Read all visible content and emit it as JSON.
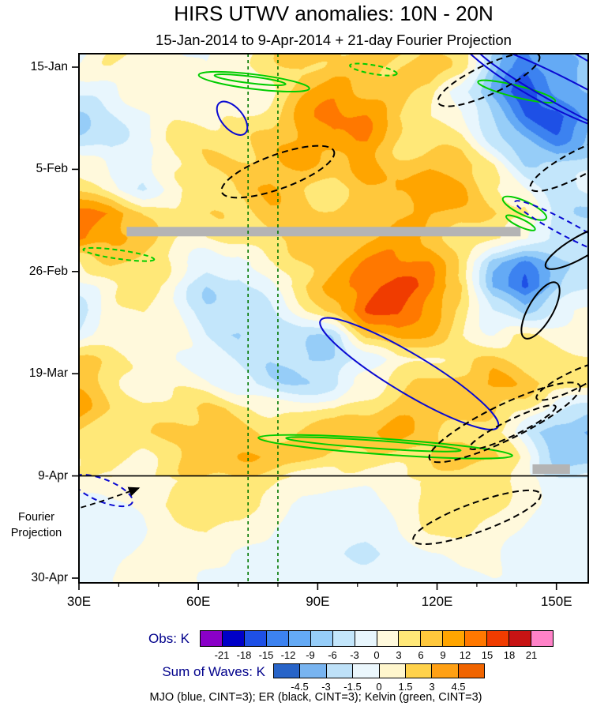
{
  "title": "HIRS UTWV anomalies: 10N - 20N",
  "subtitle": "15-Jan-2014 to 9-Apr-2014 + 21-day Fourier Projection",
  "axes": {
    "y_ticks": [
      "15-Jan",
      "5-Feb",
      "26-Feb",
      "19-Mar",
      "9-Apr",
      "30-Apr"
    ],
    "x_ticks": [
      "30E",
      "60E",
      "90E",
      "120E",
      "150E"
    ],
    "fourier_label_line1": "Fourier",
    "fourier_label_line2": "Projection"
  },
  "caption": "MJO (blue, CINT=3); ER (black, CINT=3); Kelvin (green, CINT=3)",
  "colorbars": {
    "label_color": "#00008B",
    "obs": {
      "label": "Obs: K",
      "ticks": [
        "-21",
        "-18",
        "-15",
        "-12",
        "-9",
        "-6",
        "-3",
        "0",
        "3",
        "6",
        "9",
        "12",
        "15",
        "18",
        "21"
      ],
      "colors": [
        "#8A00C8",
        "#0000C8",
        "#1E50E6",
        "#3C82F0",
        "#64AAF5",
        "#96CDF8",
        "#C3E6FB",
        "#E8F6FD",
        "#FFF9DC",
        "#FFE878",
        "#FFC83C",
        "#FFA500",
        "#FF7800",
        "#F03C00",
        "#C81414",
        "#FF82C8"
      ]
    },
    "waves": {
      "label": "Sum of Waves: K",
      "ticks": [
        "-4.5",
        "-3",
        "-1.5",
        "0",
        "1.5",
        "3",
        "4.5"
      ],
      "colors": [
        "#2864C8",
        "#78B4F0",
        "#BEE1F8",
        "#EBF7FD",
        "#FFF6CD",
        "#FFD24B",
        "#FFA014",
        "#F06400"
      ]
    }
  },
  "wave_colors": {
    "mjo": "#0A0AD2",
    "er": "#000000",
    "kelvin": "#00CC00",
    "reference_green": "#007800",
    "missing_gray": "#B4B4B4"
  },
  "chart_data": {
    "type": "heatmap",
    "title": "HIRS UTWV anomalies: 10N - 20N",
    "x_unit": "degrees east longitude",
    "y_unit": "days since 15-Jan-2014 (time increases downward)",
    "x_range": [
      30,
      158
    ],
    "y_range_days": [
      0,
      105
    ],
    "x_tick_lons": [
      30,
      60,
      90,
      120,
      150
    ],
    "y_tick_days": [
      0,
      21,
      42,
      63,
      84,
      105
    ],
    "projection_start_day": 84,
    "contour_interval_K": 3,
    "x": [
      30,
      38,
      46,
      54,
      62,
      70,
      78,
      86,
      94,
      102,
      110,
      118,
      126,
      134,
      142,
      150,
      158
    ],
    "y": [
      0,
      5,
      10,
      15,
      20,
      25,
      30,
      35,
      40,
      45,
      50,
      55,
      60,
      65,
      70,
      75,
      80,
      85,
      90,
      95,
      100,
      105
    ],
    "values": [
      [
        -2,
        1,
        2,
        2,
        -2,
        2,
        5,
        7,
        8,
        7,
        8,
        9,
        4,
        -8,
        -14,
        -10,
        -6
      ],
      [
        -4,
        -1,
        2,
        3,
        1,
        3,
        4,
        8,
        10,
        8,
        7,
        6,
        -2,
        -12,
        -18,
        -12,
        -8
      ],
      [
        -5,
        -3,
        0,
        3,
        3,
        2,
        5,
        9,
        11,
        10,
        6,
        4,
        0,
        -8,
        -14,
        -16,
        -10
      ],
      [
        -4,
        -4,
        1,
        4,
        3,
        4,
        6,
        9,
        12,
        12,
        8,
        5,
        3,
        -4,
        -8,
        -12,
        -8
      ],
      [
        2,
        -2,
        -2,
        2,
        5,
        6,
        8,
        9,
        8,
        10,
        9,
        9,
        6,
        2,
        -5,
        -6,
        -4
      ],
      [
        6,
        2,
        -2,
        1,
        4,
        7,
        9,
        7,
        5,
        8,
        10,
        8,
        8,
        4,
        0,
        -4,
        -2
      ],
      [
        13,
        12,
        6,
        4,
        5,
        6,
        7,
        6,
        6,
        8,
        9,
        8,
        7,
        8,
        6,
        -4,
        -6
      ],
      [
        14,
        10,
        5,
        3,
        4,
        5,
        6,
        5,
        7,
        9,
        10,
        9,
        6,
        4,
        2,
        -6,
        -4
      ],
      [
        4,
        5,
        4,
        2,
        -2,
        -3,
        2,
        5,
        9,
        12,
        13,
        12,
        6,
        -8,
        -12,
        -8,
        -6
      ],
      [
        -2,
        2,
        3,
        0,
        -4,
        -4,
        1,
        6,
        10,
        14,
        15,
        13,
        8,
        -10,
        -16,
        -9,
        -5
      ],
      [
        -3,
        1,
        4,
        2,
        -3,
        -6,
        -4,
        2,
        8,
        13,
        14,
        10,
        5,
        -4,
        -8,
        -2,
        2
      ],
      [
        -2,
        2,
        3,
        1,
        -4,
        -8,
        -8,
        -4,
        -5,
        6,
        10,
        8,
        4,
        2,
        4,
        4,
        2
      ],
      [
        5,
        4,
        1,
        0,
        -3,
        -5,
        -6,
        -5,
        -6,
        -2,
        3,
        4,
        6,
        8,
        6,
        5,
        4
      ],
      [
        7,
        5,
        2,
        1,
        0,
        -3,
        -4,
        -3,
        -4,
        1,
        4,
        6,
        9,
        10,
        7,
        6,
        3
      ],
      [
        8,
        6,
        4,
        5,
        6,
        5,
        4,
        3,
        2,
        5,
        8,
        9,
        8,
        6,
        4,
        -2,
        -4
      ],
      [
        6,
        5,
        5,
        7,
        8,
        8,
        7,
        6,
        6,
        7,
        9,
        8,
        6,
        3,
        -2,
        -8,
        -10
      ],
      [
        5,
        6,
        3,
        4,
        7,
        8,
        8,
        7,
        5,
        4,
        5,
        6,
        8,
        6,
        2,
        -6,
        -8
      ],
      [
        2,
        3,
        1,
        2,
        4,
        5,
        4,
        2,
        1,
        1,
        2,
        3,
        4,
        4,
        2,
        -2,
        -3
      ],
      [
        -2,
        -1,
        1,
        4,
        6,
        5,
        2,
        -1,
        -2,
        -2,
        1,
        4,
        5,
        4,
        1,
        -1,
        -2
      ],
      [
        -3,
        -2,
        0,
        2,
        3,
        2,
        0,
        -2,
        -3,
        -2,
        0,
        3,
        4,
        2,
        0,
        -2,
        -3
      ],
      [
        -2,
        -1,
        0,
        1,
        1,
        0,
        -1,
        -2,
        -3,
        -3,
        -2,
        0,
        1,
        1,
        -1,
        -2,
        -2
      ],
      [
        -1,
        0,
        1,
        1,
        0,
        -1,
        -2,
        -2,
        -2,
        -2,
        -2,
        -1,
        0,
        0,
        -1,
        -2,
        -1
      ]
    ],
    "overlays": {
      "reference_lons": [
        72.5,
        80
      ],
      "missing_data_bars": [
        {
          "lon0": 42,
          "lon1": 141,
          "day": 33.8
        },
        {
          "lon0": 144,
          "lon1": 153.4,
          "day": 82.6
        }
      ],
      "arrow": {
        "from_lon": 30.5,
        "from_day": 90.5,
        "to_lon": 45,
        "to_day": 86.5
      },
      "wave_contours": [
        {
          "wave": "kelvin",
          "lon": 74,
          "day": 3,
          "rx_deg": 14,
          "ry_day": 1.5,
          "rot": 7,
          "dashed": false
        },
        {
          "wave": "kelvin",
          "lon": 73,
          "day": 2.6,
          "rx_deg": 9,
          "ry_day": 0.7,
          "rot": 7,
          "dashed": false
        },
        {
          "wave": "kelvin",
          "lon": 104,
          "day": 0.5,
          "rx_deg": 6,
          "ry_day": 0.9,
          "rot": 10,
          "dashed": true
        },
        {
          "wave": "kelvin",
          "lon": 140,
          "day": 5,
          "rx_deg": 10,
          "ry_day": 1.2,
          "rot": 14,
          "dashed": false
        },
        {
          "wave": "kelvin",
          "lon": 40,
          "day": 38.5,
          "rx_deg": 9,
          "ry_day": 0.9,
          "rot": 8,
          "dashed": true
        },
        {
          "wave": "kelvin",
          "lon": 142,
          "day": 29,
          "rx_deg": 6,
          "ry_day": 1.4,
          "rot": 25,
          "dashed": false
        },
        {
          "wave": "kelvin",
          "lon": 141,
          "day": 32,
          "rx_deg": 4,
          "ry_day": 0.8,
          "rot": 25,
          "dashed": false
        },
        {
          "wave": "kelvin",
          "lon": 107,
          "day": 78,
          "rx_deg": 32,
          "ry_day": 1.6,
          "rot": 4,
          "dashed": false
        },
        {
          "wave": "kelvin",
          "lon": 104,
          "day": 77.5,
          "rx_deg": 22,
          "ry_day": 0.8,
          "rot": 4,
          "dashed": false
        },
        {
          "wave": "mjo",
          "lon": 68.5,
          "day": 10.5,
          "rx_deg": 5,
          "ry_day": 2.2,
          "rot": 50,
          "dashed": false
        },
        {
          "wave": "mjo",
          "lon": 113,
          "day": 63,
          "rx_deg": 26,
          "ry_day": 4,
          "rot": 31,
          "dashed": false
        },
        {
          "wave": "mjo",
          "lon": 150,
          "day": 2,
          "rx_deg": 30,
          "ry_day": 6,
          "rot": 28,
          "dashed": false
        },
        {
          "wave": "mjo",
          "lon": 156,
          "day": 7,
          "rx_deg": 30,
          "ry_day": 2.8,
          "rot": 28,
          "dashed": false
        },
        {
          "wave": "mjo",
          "lon": 152,
          "day": 33,
          "rx_deg": 14,
          "ry_day": 1.5,
          "rot": 28,
          "dashed": true
        },
        {
          "wave": "mjo",
          "lon": 36,
          "day": 87,
          "rx_deg": 8,
          "ry_day": 2.3,
          "rot": 22,
          "dashed": true
        },
        {
          "wave": "er",
          "lon": 80,
          "day": 21.5,
          "rx_deg": 15,
          "ry_day": 3.5,
          "rot": -20,
          "dashed": true
        },
        {
          "wave": "er",
          "lon": 133,
          "day": 2.5,
          "rx_deg": 14,
          "ry_day": 3,
          "rot": -25,
          "dashed": true
        },
        {
          "wave": "er",
          "lon": 155,
          "day": 20,
          "rx_deg": 13,
          "ry_day": 2.6,
          "rot": -28,
          "dashed": true
        },
        {
          "wave": "er",
          "lon": 156,
          "day": 37,
          "rx_deg": 10,
          "ry_day": 2.2,
          "rot": -30,
          "dashed": false
        },
        {
          "wave": "er",
          "lon": 146,
          "day": 50,
          "rx_deg": 8,
          "ry_day": 2.5,
          "rot": -60,
          "dashed": false
        },
        {
          "wave": "er",
          "lon": 137,
          "day": 73,
          "rx_deg": 21,
          "ry_day": 3.6,
          "rot": -26,
          "dashed": true
        },
        {
          "wave": "er",
          "lon": 139,
          "day": 74,
          "rx_deg": 12,
          "ry_day": 1.6,
          "rot": -26,
          "dashed": true
        },
        {
          "wave": "er",
          "lon": 154,
          "day": 64.5,
          "rx_deg": 10,
          "ry_day": 1.8,
          "rot": -26,
          "dashed": true
        },
        {
          "wave": "er",
          "lon": 130,
          "day": 92.5,
          "rx_deg": 17,
          "ry_day": 3,
          "rot": -20,
          "dashed": true
        }
      ]
    }
  }
}
